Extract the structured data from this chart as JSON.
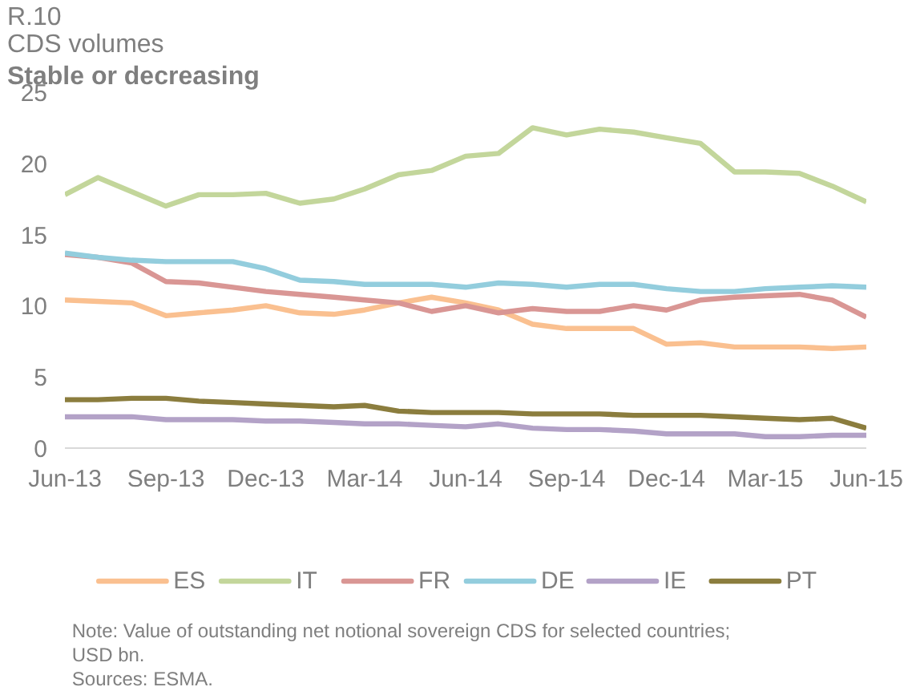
{
  "chart_data": {
    "type": "line",
    "title": "R.10\nCDS volumes",
    "subtitle": "Stable or decreasing",
    "x": [
      "2013-06",
      "2013-07",
      "2013-08",
      "2013-09",
      "2013-10",
      "2013-11",
      "2013-12",
      "2014-01",
      "2014-02",
      "2014-03",
      "2014-04",
      "2014-05",
      "2014-06",
      "2014-07",
      "2014-08",
      "2014-09",
      "2014-10",
      "2014-11",
      "2014-12",
      "2015-01",
      "2015-02",
      "2015-03",
      "2015-04",
      "2015-05",
      "2015-06"
    ],
    "series": [
      {
        "name": "ES",
        "color": "#fac090",
        "values": [
          10.4,
          10.3,
          10.2,
          9.3,
          9.5,
          9.7,
          10.0,
          9.5,
          9.4,
          9.7,
          10.2,
          10.6,
          10.2,
          9.7,
          8.7,
          8.4,
          8.4,
          8.4,
          7.3,
          7.4,
          7.1,
          7.1,
          7.1,
          7.0,
          7.1
        ]
      },
      {
        "name": "IT",
        "color": "#c3d69b",
        "values": [
          17.8,
          19.0,
          18.0,
          17.0,
          17.8,
          17.8,
          17.9,
          17.2,
          17.5,
          18.2,
          19.2,
          19.5,
          20.5,
          20.7,
          22.5,
          22.0,
          22.4,
          22.2,
          21.8,
          21.4,
          19.4,
          19.4,
          19.3,
          18.4,
          17.3
        ]
      },
      {
        "name": "FR",
        "color": "#d99694",
        "values": [
          13.6,
          13.4,
          13.0,
          11.7,
          11.6,
          11.3,
          11.0,
          10.8,
          10.6,
          10.4,
          10.2,
          9.6,
          10.0,
          9.5,
          9.8,
          9.6,
          9.6,
          10.0,
          9.7,
          10.4,
          10.6,
          10.7,
          10.8,
          10.4,
          9.2
        ]
      },
      {
        "name": "DE",
        "color": "#93cddd",
        "values": [
          13.7,
          13.4,
          13.2,
          13.1,
          13.1,
          13.1,
          12.6,
          11.8,
          11.7,
          11.5,
          11.5,
          11.5,
          11.3,
          11.6,
          11.5,
          11.3,
          11.5,
          11.5,
          11.2,
          11.0,
          11.0,
          11.2,
          11.3,
          11.4,
          11.3
        ]
      },
      {
        "name": "IE",
        "color": "#b3a2c7",
        "values": [
          2.2,
          2.2,
          2.2,
          2.0,
          2.0,
          2.0,
          1.9,
          1.9,
          1.8,
          1.7,
          1.7,
          1.6,
          1.5,
          1.7,
          1.4,
          1.3,
          1.3,
          1.2,
          1.0,
          1.0,
          1.0,
          0.8,
          0.8,
          0.9,
          0.9
        ]
      },
      {
        "name": "PT",
        "color": "#8b7d3e",
        "values": [
          3.4,
          3.4,
          3.5,
          3.5,
          3.3,
          3.2,
          3.1,
          3.0,
          2.9,
          3.0,
          2.6,
          2.5,
          2.5,
          2.5,
          2.4,
          2.4,
          2.4,
          2.3,
          2.3,
          2.3,
          2.2,
          2.1,
          2.0,
          2.1,
          1.4
        ]
      }
    ],
    "xlim": [
      "2013-06",
      "2015-06"
    ],
    "xticks": [
      {
        "value": "2013-06",
        "label": "Jun-13"
      },
      {
        "value": "2013-09",
        "label": "Sep-13"
      },
      {
        "value": "2013-12",
        "label": "Dec-13"
      },
      {
        "value": "2014-03",
        "label": "Mar-14"
      },
      {
        "value": "2014-06",
        "label": "Jun-14"
      },
      {
        "value": "2014-09",
        "label": "Sep-14"
      },
      {
        "value": "2014-12",
        "label": "Dec-14"
      },
      {
        "value": "2015-03",
        "label": "Mar-15"
      },
      {
        "value": "2015-06",
        "label": "Jun-15"
      }
    ],
    "ylim": [
      0,
      25
    ],
    "yticks": [
      0,
      5,
      10,
      15,
      20,
      25
    ],
    "grid": false,
    "legend": "bottom",
    "marker": "none",
    "line_style": "solid",
    "annotations": [
      "Note: Value of outstanding net notional sovereign CDS for selected countries; USD bn.",
      "Sources: ESMA."
    ]
  }
}
